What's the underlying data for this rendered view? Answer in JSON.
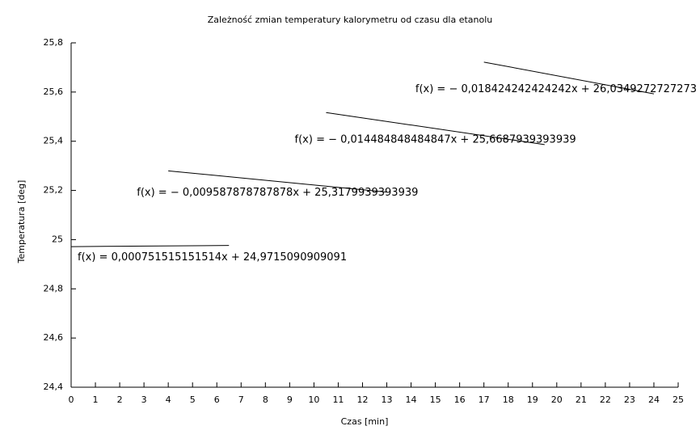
{
  "chart_data": {
    "type": "line",
    "title": "Zależność zmian temperatury kalorymetru od czasu dla etanolu",
    "x_label": "Czas [min]",
    "y_label": "Temperatura [deg]",
    "xlim": [
      0,
      25
    ],
    "xticks": [
      0,
      1,
      2,
      3,
      4,
      5,
      6,
      7,
      8,
      9,
      10,
      11,
      12,
      13,
      14,
      15,
      16,
      17,
      18,
      19,
      20,
      21,
      22,
      23,
      24,
      25
    ],
    "ylim": [
      24.4,
      25.8
    ],
    "yticks": [
      {
        "value": 24.4,
        "label": "24,4"
      },
      {
        "value": 24.6,
        "label": "24,6"
      },
      {
        "value": 24.8,
        "label": "24,8"
      },
      25,
      {
        "value": 25.2,
        "label": "25,2"
      },
      {
        "value": 25.4,
        "label": "25,4"
      },
      {
        "value": 25.6,
        "label": "25,6"
      },
      {
        "value": 25.8,
        "label": "25,8"
      }
    ],
    "grid": false,
    "series": [
      {
        "name": "f(x) = 0,000751515151514x + 24,9715090909091",
        "color": "#000000",
        "x": [
          0,
          6.5
        ],
        "values": [
          24.9715,
          24.9764
        ]
      },
      {
        "name": "f(x) = − 0,009587878787878x + 25,3179939393939",
        "color": "#000000",
        "x": [
          4,
          13
        ],
        "values": [
          25.2796,
          25.1933
        ]
      },
      {
        "name": "f(x) = − 0,014484848484847x + 25,6687939393939",
        "color": "#000000",
        "x": [
          10.5,
          19.5
        ],
        "values": [
          25.5167,
          25.3863
        ]
      },
      {
        "name": "f(x) = − 0,018424242424242x + 26,0349272727273",
        "color": "#000000",
        "x": [
          17,
          24
        ],
        "values": [
          25.7217,
          25.5927
        ]
      }
    ]
  }
}
